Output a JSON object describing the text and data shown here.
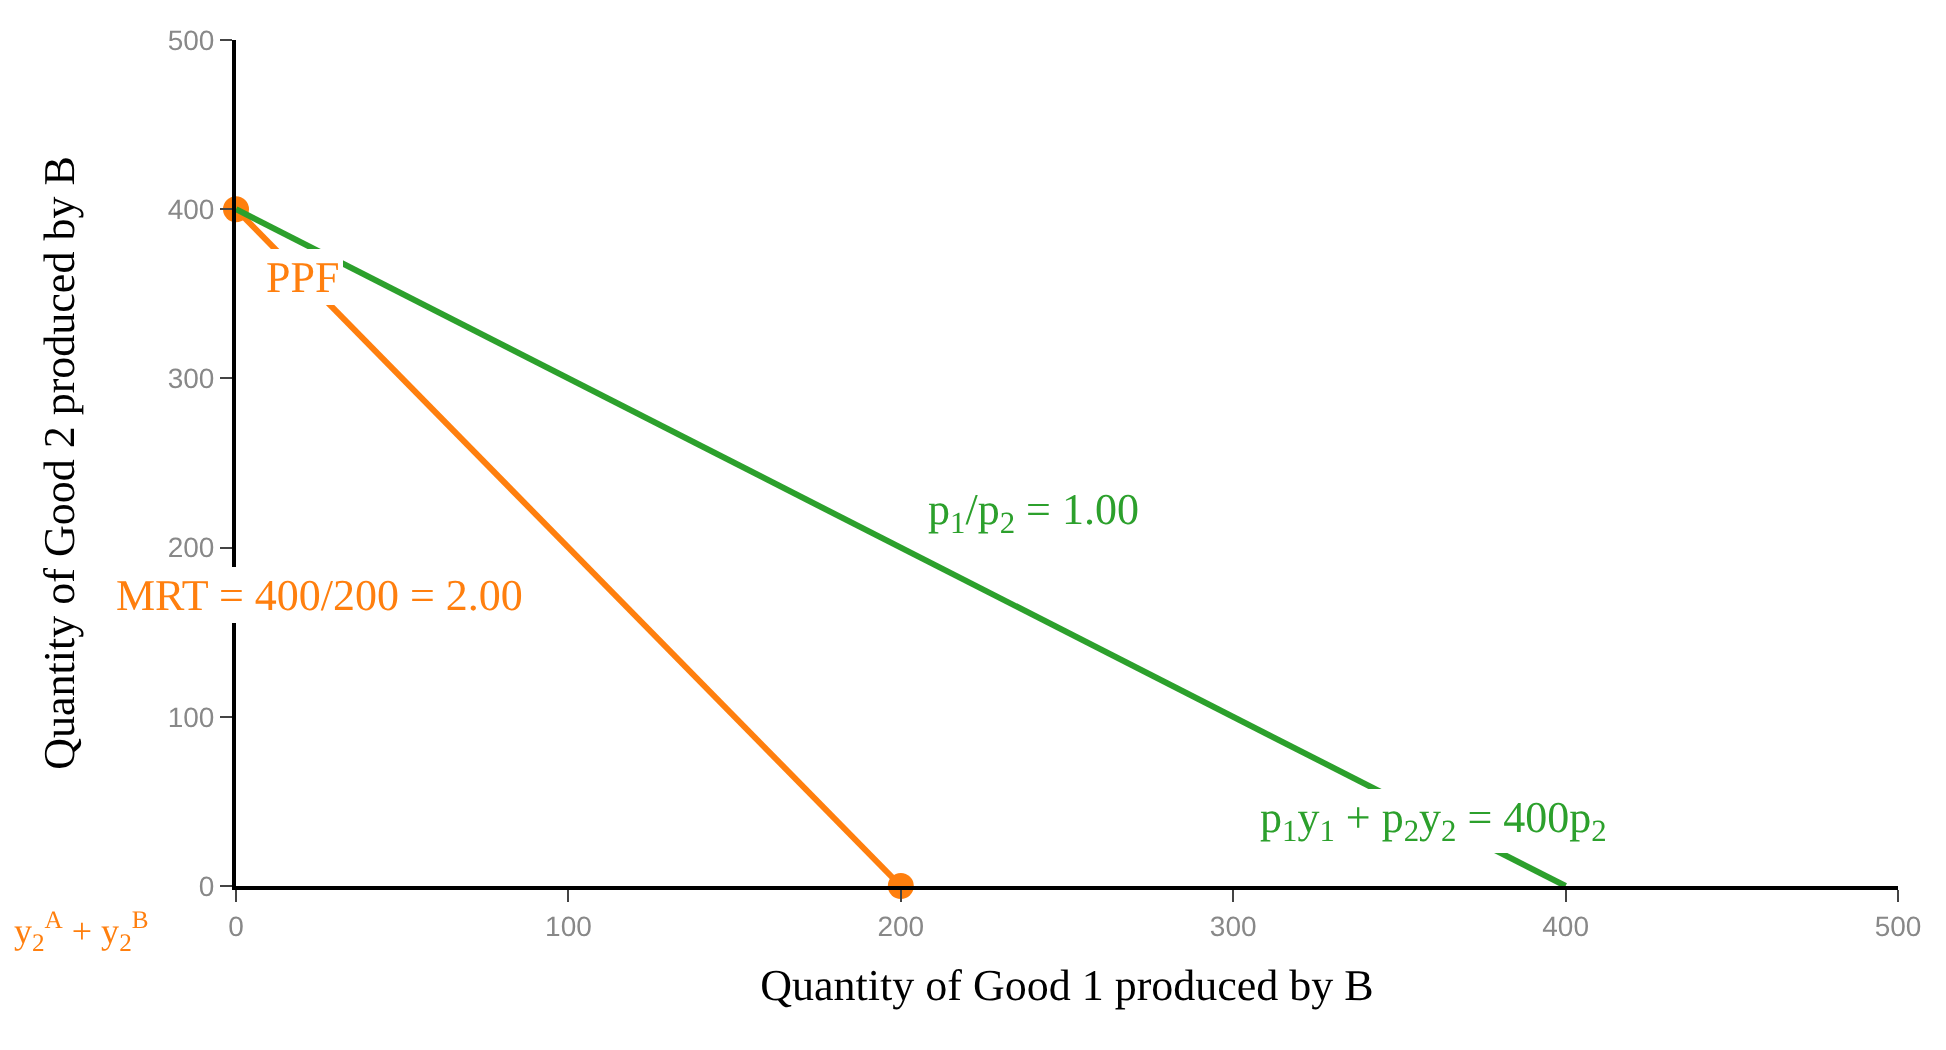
{
  "chart_data": {
    "type": "line",
    "xlabel": "Quantity of Good 1 produced by B",
    "ylabel": "Quantity of Good 2 produced by B",
    "xlim": [
      0,
      500
    ],
    "ylim": [
      0,
      500
    ],
    "xticks": [
      0,
      100,
      200,
      300,
      400,
      500
    ],
    "yticks": [
      0,
      100,
      200,
      300,
      400,
      500
    ],
    "series": [
      {
        "x": [
          0,
          200
        ],
        "values": [
          400,
          0
        ],
        "color": "#ff7f0e",
        "marker": "circle"
      },
      {
        "x": [
          0,
          400
        ],
        "values": [
          400,
          0
        ],
        "color": "#2ca02c",
        "marker": "none"
      }
    ],
    "annotations": [
      "PPF",
      "MRT = 400/200 = 2.00",
      "p$_{1}$/p$_{2}$ = 1.00",
      "p$_{1}$y$_{1}$ + p$_{2}$y$_{2}$ = 400p$_{2}$",
      "y$_{2}$$^{A}$ + y$_{2}$$^{B}$"
    ]
  }
}
